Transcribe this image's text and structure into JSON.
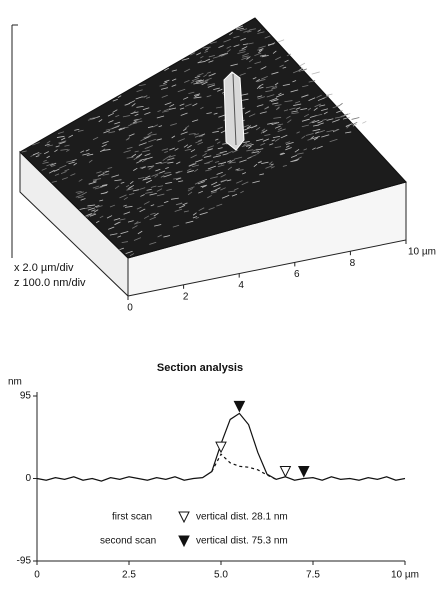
{
  "chart_data": [
    {
      "type": "surface",
      "x_scale_label": "x 2.0 µm/div",
      "z_scale_label": "z 100.0 nm/div",
      "xlim": [
        0,
        10
      ],
      "xticks": [
        0,
        2,
        4,
        6,
        8,
        {
          "value": 10,
          "label": "10 µm"
        }
      ]
    },
    {
      "type": "line",
      "title": "Section analysis",
      "y_label": "nm",
      "xlim": [
        0,
        10
      ],
      "xticks": [
        0,
        2.5,
        {
          "value": 5,
          "label": "5.0"
        },
        7.5,
        {
          "value": 10,
          "label": "10 µm"
        }
      ],
      "ylim": [
        -95,
        95
      ],
      "yticks": [
        -95,
        0,
        95
      ],
      "x": [
        0,
        0.25,
        0.5,
        0.75,
        1,
        1.25,
        1.5,
        1.75,
        2,
        2.25,
        2.5,
        2.75,
        3,
        3.25,
        3.5,
        3.75,
        4,
        4.25,
        4.5,
        4.75,
        5,
        5.25,
        5.5,
        5.75,
        6,
        6.25,
        6.5,
        6.75,
        7,
        7.25,
        7.5,
        7.75,
        8,
        8.25,
        8.5,
        8.75,
        9,
        9.25,
        9.5,
        9.75,
        10
      ],
      "series": [
        {
          "name": "second scan",
          "color": "#111111",
          "dash": false,
          "vertical_dist_label": "vertical dist. 75.3 nm",
          "values": [
            0,
            -2,
            1,
            -1,
            2,
            -2,
            0,
            -3,
            1,
            -1,
            2,
            0,
            -2,
            1,
            -1,
            2,
            -2,
            0,
            1,
            8,
            40,
            68,
            75,
            62,
            30,
            5,
            -1,
            2,
            -2,
            0,
            1,
            -2,
            2,
            -1,
            0,
            -2,
            1,
            -1,
            2,
            -2,
            0
          ],
          "markers": {
            "x": [
              5.5,
              7.25
            ],
            "y": [
              75,
              0
            ]
          }
        },
        {
          "name": "first scan",
          "color": "#111111",
          "dash": true,
          "vertical_dist_label": "vertical dist. 28.1 nm",
          "values": [
            null,
            null,
            null,
            null,
            null,
            null,
            null,
            null,
            null,
            null,
            null,
            null,
            null,
            null,
            null,
            null,
            null,
            null,
            null,
            8,
            28,
            18,
            14,
            13,
            10,
            4,
            -1,
            null,
            null,
            null,
            null,
            null,
            null,
            null,
            null,
            null,
            null,
            null,
            null,
            null,
            null
          ],
          "markers": {
            "x": [
              5,
              6.75
            ],
            "y": [
              28,
              0
            ]
          }
        }
      ]
    }
  ]
}
